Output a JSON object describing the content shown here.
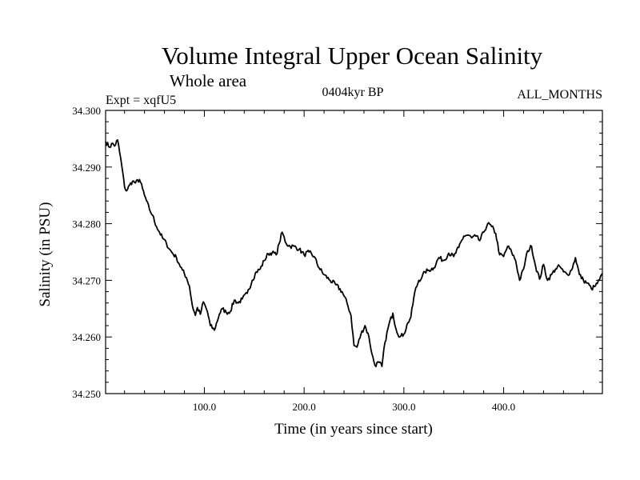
{
  "chart_data": {
    "type": "line",
    "title": "Volume Integral Upper Ocean Salinity",
    "subtitle": "Whole area",
    "experiment": "Expt = xqfU5",
    "period": "0404kyr BP",
    "months": "ALL_MONTHS",
    "xlabel": "Time (in years since start)",
    "ylabel": "Salinity (in PSU)",
    "xlim": [
      1,
      499
    ],
    "ylim": [
      34.25,
      34.3
    ],
    "x_ticks": [
      100,
      200,
      300,
      400
    ],
    "x_tick_labels": [
      "100.0",
      "200.0",
      "300.0",
      "400.0"
    ],
    "y_ticks": [
      34.25,
      34.26,
      34.27,
      34.28,
      34.29,
      34.3
    ],
    "y_tick_labels": [
      "34.250",
      "34.260",
      "34.270",
      "34.280",
      "34.290",
      "34.300"
    ],
    "series": [
      {
        "name": "salinity",
        "x": [
          1,
          5,
          8,
          10,
          13,
          17,
          20,
          22,
          25,
          28,
          31,
          35,
          38,
          40,
          45,
          48,
          52,
          55,
          58,
          62,
          65,
          68,
          72,
          75,
          78,
          82,
          85,
          88,
          91,
          93,
          96,
          99,
          103,
          106,
          110,
          115,
          118,
          122,
          126,
          130,
          134,
          138,
          143,
          148,
          152,
          156,
          160,
          164,
          168,
          172,
          175,
          178,
          182,
          186,
          190,
          195,
          200,
          205,
          210,
          215,
          220,
          226,
          232,
          238,
          243,
          247,
          250,
          253,
          257,
          261,
          265,
          268,
          271,
          275,
          278,
          281,
          285,
          289,
          292,
          296,
          300,
          304,
          307,
          311,
          315,
          318,
          321,
          325,
          330,
          335,
          340,
          345,
          350,
          355,
          360,
          364,
          368,
          372,
          376,
          380,
          384,
          388,
          392,
          396,
          400,
          404,
          408,
          412,
          416,
          420,
          424,
          428,
          432,
          436,
          440,
          444,
          448,
          452,
          456,
          460,
          464,
          468,
          472,
          476,
          480,
          484,
          488,
          492,
          496,
          499
        ],
        "y": [
          34.2945,
          34.2935,
          34.2942,
          34.2937,
          34.2948,
          34.2905,
          34.2865,
          34.2858,
          34.2868,
          34.2875,
          34.2872,
          34.2878,
          34.2862,
          34.285,
          34.2825,
          34.2815,
          34.2795,
          34.2785,
          34.2775,
          34.2765,
          34.2755,
          34.2748,
          34.274,
          34.2728,
          34.2718,
          34.2705,
          34.269,
          34.2655,
          34.2638,
          34.2652,
          34.264,
          34.2662,
          34.2645,
          34.262,
          34.2612,
          34.264,
          34.265,
          34.2643,
          34.2645,
          34.2665,
          34.266,
          34.2667,
          34.2677,
          34.27,
          34.2715,
          34.272,
          34.2735,
          34.2747,
          34.2749,
          34.2745,
          34.2765,
          34.2785,
          34.2765,
          34.276,
          34.276,
          34.2755,
          34.2745,
          34.275,
          34.2742,
          34.2722,
          34.271,
          34.27,
          34.2692,
          34.268,
          34.266,
          34.2638,
          34.2585,
          34.2582,
          34.2605,
          34.262,
          34.26,
          34.257,
          34.255,
          34.2555,
          34.2548,
          34.259,
          34.2622,
          34.2642,
          34.2615,
          34.26,
          34.2605,
          34.2625,
          34.2635,
          34.268,
          34.27,
          34.2705,
          34.2715,
          34.2718,
          34.2722,
          34.274,
          34.2735,
          34.2748,
          34.2742,
          34.2758,
          34.2778,
          34.278,
          34.2775,
          34.2778,
          34.277,
          34.2785,
          34.28,
          34.2795,
          34.2783,
          34.2745,
          34.2742,
          34.276,
          34.275,
          34.2735,
          34.27,
          34.272,
          34.2752,
          34.276,
          34.2725,
          34.2702,
          34.2728,
          34.27,
          34.271,
          34.272,
          34.2725,
          34.2715,
          34.271,
          34.2718,
          34.274,
          34.271,
          34.27,
          34.2695,
          34.2685,
          34.269,
          34.27,
          34.2712
        ]
      }
    ]
  }
}
